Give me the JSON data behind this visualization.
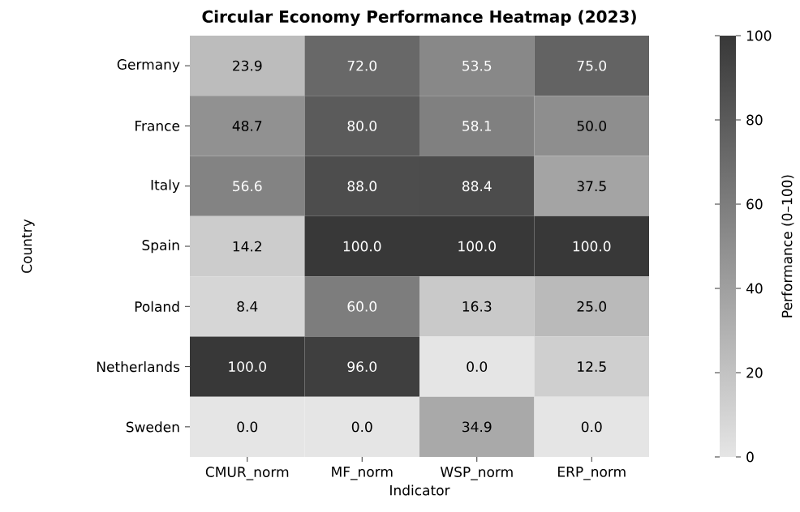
{
  "chart_data": {
    "type": "heatmap",
    "title": "Circular Economy Performance Heatmap (2023)",
    "xlabel": "Indicator",
    "ylabel": "Country",
    "clabel": "Performance (0–100)",
    "categories": [
      "CMUR_norm",
      "MF_norm",
      "WSP_norm",
      "ERP_norm"
    ],
    "y_categories": [
      "Germany",
      "France",
      "Italy",
      "Spain",
      "Poland",
      "Netherlands",
      "Sweden"
    ],
    "cells": [
      [
        23.9,
        72.0,
        53.5,
        75.0
      ],
      [
        48.7,
        80.0,
        58.1,
        50.0
      ],
      [
        56.6,
        88.0,
        88.4,
        37.5
      ],
      [
        14.2,
        100.0,
        100.0,
        100.0
      ],
      [
        8.4,
        60.0,
        16.3,
        25.0
      ],
      [
        100.0,
        96.0,
        0.0,
        12.5
      ],
      [
        0.0,
        0.0,
        34.9,
        0.0
      ]
    ],
    "cell_labels": [
      [
        "23.9",
        "72.0",
        "53.5",
        "75.0"
      ],
      [
        "48.7",
        "80.0",
        "58.1",
        "50.0"
      ],
      [
        "56.6",
        "88.0",
        "88.4",
        "37.5"
      ],
      [
        "14.2",
        "100.0",
        "100.0",
        "100.0"
      ],
      [
        "8.4",
        "60.0",
        "16.3",
        "25.0"
      ],
      [
        "100.0",
        "96.0",
        "0.0",
        "12.5"
      ],
      [
        "0.0",
        "0.0",
        "34.9",
        "0.0"
      ]
    ],
    "clim": [
      0,
      100
    ],
    "cticks": [
      0,
      20,
      40,
      60,
      80,
      100
    ]
  }
}
